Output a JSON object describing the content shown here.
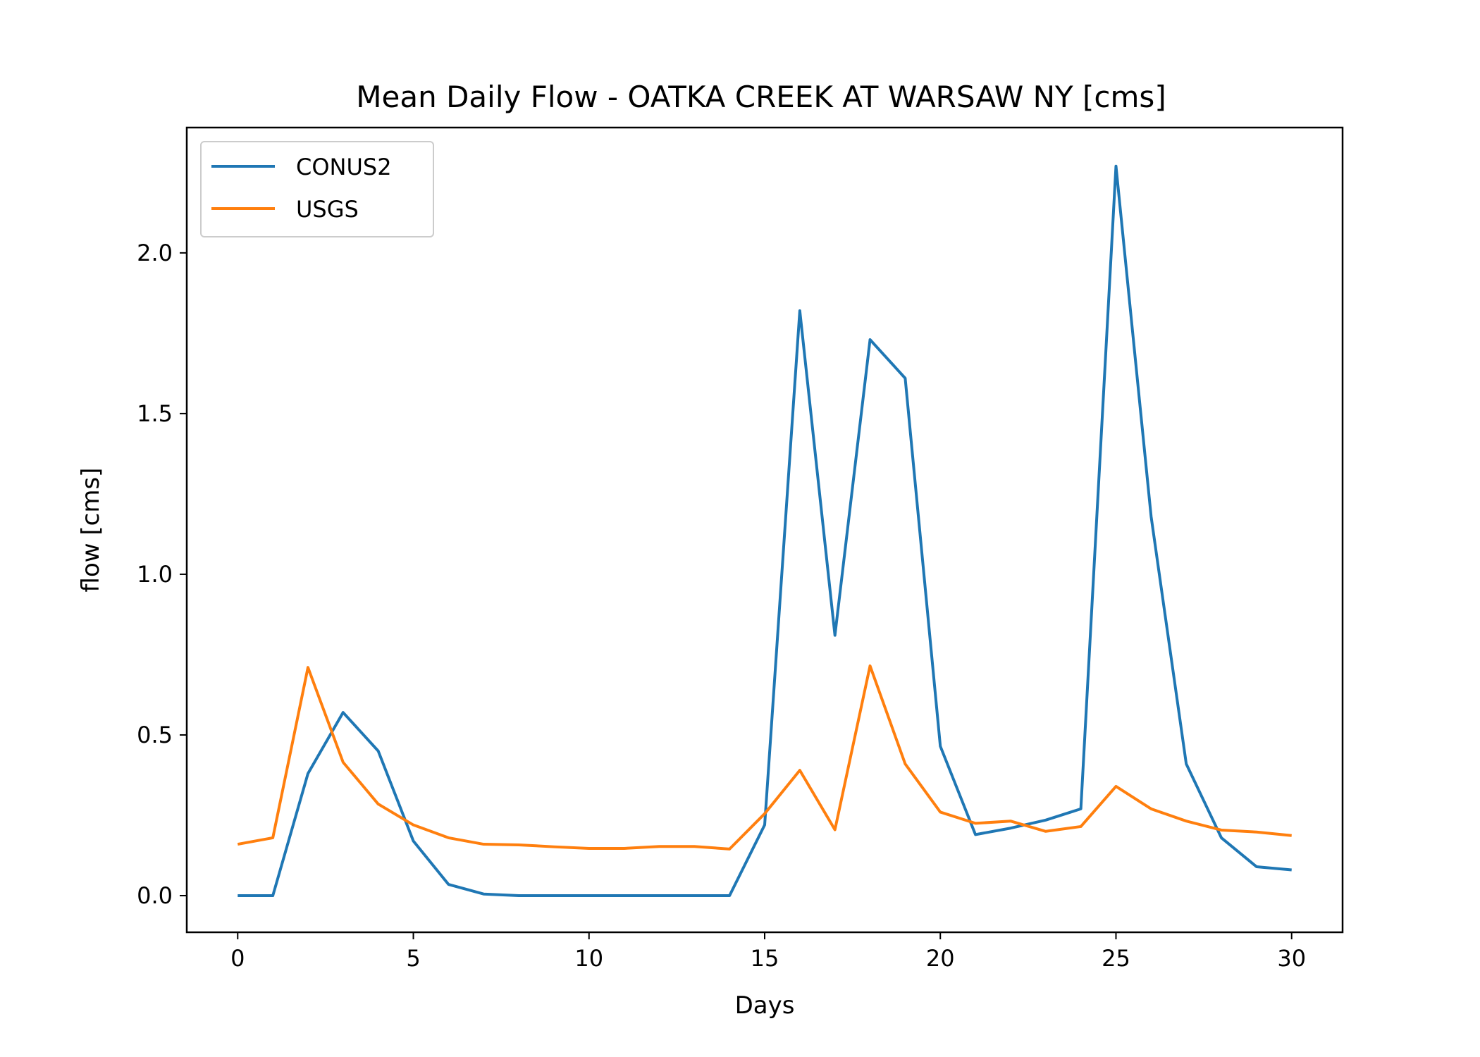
{
  "chart_data": {
    "type": "line",
    "title": "Mean Daily Flow - OATKA CREEK AT WARSAW NY [cms]",
    "xlabel": "Days",
    "ylabel": "flow [cms]",
    "xlim": [
      -1.45,
      31.45
    ],
    "ylim": [
      -0.114,
      2.39
    ],
    "xticks": [
      0,
      5,
      10,
      15,
      20,
      25,
      30
    ],
    "xtick_labels": [
      "0",
      "5",
      "10",
      "15",
      "20",
      "25",
      "30"
    ],
    "yticks": [
      0.0,
      0.5,
      1.0,
      1.5,
      2.0
    ],
    "ytick_labels": [
      "0.0",
      "0.5",
      "1.0",
      "1.5",
      "2.0"
    ],
    "grid": false,
    "legend_position": "top-left",
    "x": [
      0,
      1,
      2,
      3,
      4,
      5,
      6,
      7,
      8,
      9,
      10,
      11,
      12,
      13,
      14,
      15,
      16,
      17,
      18,
      19,
      20,
      21,
      22,
      23,
      24,
      25,
      26,
      27,
      28,
      29,
      30
    ],
    "series": [
      {
        "name": "CONUS2",
        "color": "#1f77b4",
        "values": [
          0.0,
          0.0,
          0.38,
          0.57,
          0.45,
          0.17,
          0.035,
          0.005,
          0.0,
          0.0,
          0.0,
          0.0,
          0.0,
          0.0,
          0.0,
          0.22,
          1.82,
          0.81,
          1.73,
          1.61,
          0.465,
          0.19,
          0.21,
          0.235,
          0.27,
          2.27,
          1.18,
          0.41,
          0.18,
          0.09,
          0.08
        ]
      },
      {
        "name": "USGS",
        "color": "#ff7f0e",
        "values": [
          0.16,
          0.18,
          0.71,
          0.415,
          0.285,
          0.22,
          0.18,
          0.16,
          0.158,
          0.152,
          0.147,
          0.147,
          0.153,
          0.153,
          0.145,
          0.255,
          0.39,
          0.205,
          0.715,
          0.41,
          0.26,
          0.225,
          0.232,
          0.2,
          0.215,
          0.34,
          0.27,
          0.232,
          0.204,
          0.198,
          0.187
        ]
      }
    ]
  }
}
